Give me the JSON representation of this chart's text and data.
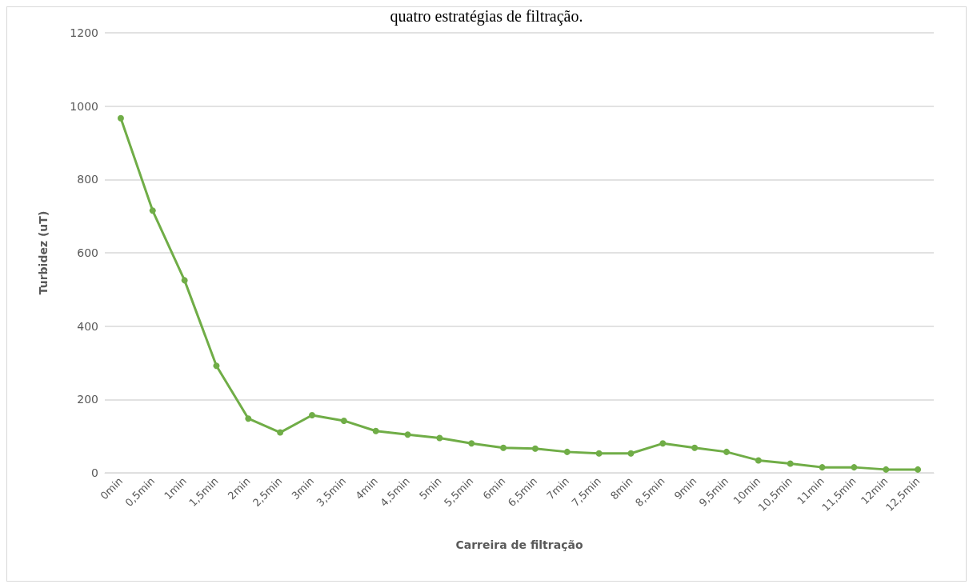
{
  "chart_data": {
    "type": "line",
    "title": "quatro estratégias de filtração.",
    "xlabel": "Carreira de filtração",
    "ylabel": "Turbidez (uT)",
    "categories": [
      "0min",
      "0,5min",
      "1min",
      "1,5min",
      "2min",
      "2,5min",
      "3min",
      "3,5min",
      "4min",
      "4,5min",
      "5min",
      "5,5min",
      "6min",
      "6,5min",
      "7min",
      "7,5min",
      "8min",
      "8,5min",
      "9min",
      "9,5min",
      "10min",
      "10,5min",
      "11min",
      "11,5min",
      "12min",
      "12,5min"
    ],
    "series": [
      {
        "color": "#70ad47",
        "values": [
          967,
          715,
          525,
          292,
          148,
          110,
          157,
          142,
          114,
          104,
          95,
          80,
          68,
          66,
          57,
          53,
          53,
          80,
          68,
          57,
          34,
          25,
          15,
          15,
          9,
          9
        ]
      }
    ],
    "ylim": [
      0,
      1200
    ],
    "yticks": [
      0,
      200,
      400,
      600,
      800,
      1000,
      1200
    ],
    "grid": "y",
    "marker": "circle",
    "line_style": "solid"
  }
}
